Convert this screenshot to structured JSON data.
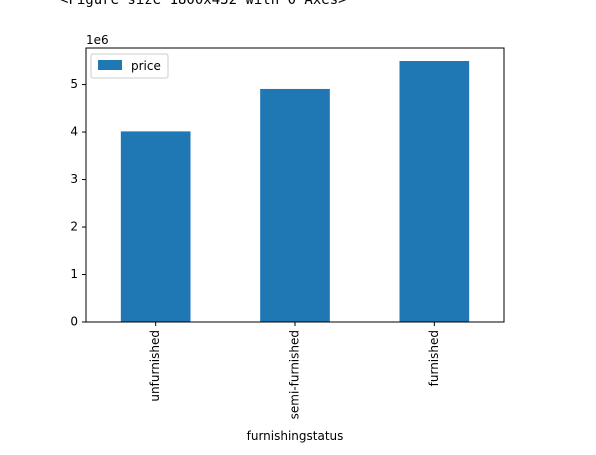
{
  "output_text": "<Figure size 1800x432 with 0 Axes>",
  "chart_data": {
    "type": "bar",
    "categories": [
      "unfurnished",
      "semi-furnished",
      "furnished"
    ],
    "series": [
      {
        "name": "price",
        "values": [
          4013831,
          4907524,
          5495696
        ],
        "color": "#1f77b4"
      }
    ],
    "xlabel": "furnishingstatus",
    "ylabel": "",
    "y_scale_label": "1e6",
    "y_ticks": [
      0,
      1,
      2,
      3,
      4,
      5
    ],
    "ylim": [
      0,
      5.77
    ],
    "legend": {
      "position": "upper-left",
      "label": "price"
    },
    "grid": false
  }
}
